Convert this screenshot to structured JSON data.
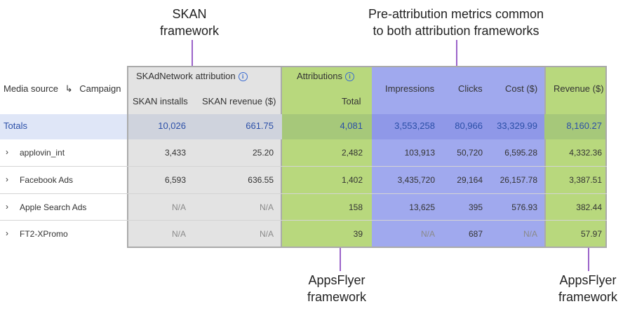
{
  "callouts": {
    "skan": "SKAN\nframework",
    "pre": "Pre-attribution metrics common\nto both attribution frameworks",
    "appsflyer1": "AppsFlyer\nframework",
    "appsflyer2": "AppsFlyer\nframework"
  },
  "header": {
    "media_source": "Media source",
    "arrow": "↳",
    "campaign": "Campaign",
    "skan_group": "SKAdNetwork attribution",
    "attr_group": "Attributions",
    "skan_installs": "SKAN installs",
    "skan_revenue": "SKAN revenue ($)",
    "total": "Total",
    "impressions": "Impressions",
    "clicks": "Clicks",
    "cost": "Cost ($)",
    "revenue": "Revenue ($)"
  },
  "totals": {
    "label": "Totals",
    "skan_installs": "10,026",
    "skan_revenue": "661.75",
    "total": "4,081",
    "impressions": "3,553,258",
    "clicks": "80,966",
    "cost": "33,329.99",
    "revenue": "8,160.27"
  },
  "rows": [
    {
      "name": "applovin_int",
      "skan_installs": "3,433",
      "skan_revenue": "25.20",
      "total": "2,482",
      "impressions": "103,913",
      "clicks": "50,720",
      "cost": "6,595.28",
      "revenue": "4,332.36"
    },
    {
      "name": "Facebook Ads",
      "skan_installs": "6,593",
      "skan_revenue": "636.55",
      "total": "1,402",
      "impressions": "3,435,720",
      "clicks": "29,164",
      "cost": "26,157.78",
      "revenue": "3,387.51"
    },
    {
      "name": "Apple Search Ads",
      "skan_installs": "N/A",
      "skan_revenue": "N/A",
      "total": "158",
      "impressions": "13,625",
      "clicks": "395",
      "cost": "576.93",
      "revenue": "382.44"
    },
    {
      "name": "FT2-XPromo",
      "skan_installs": "N/A",
      "skan_revenue": "N/A",
      "total": "39",
      "impressions": "N/A",
      "clicks": "687",
      "cost": "N/A",
      "revenue": "57.97"
    }
  ],
  "icons": {
    "info": "info-icon",
    "expand": "chevron-right-icon"
  },
  "colors": {
    "skan_bg": "#e3e3e3",
    "attr_bg": "#b8d87d",
    "pre_bg": "#a0a9ee",
    "totals_text": "#2b4fa8",
    "callout_line": "#9b63c9"
  }
}
